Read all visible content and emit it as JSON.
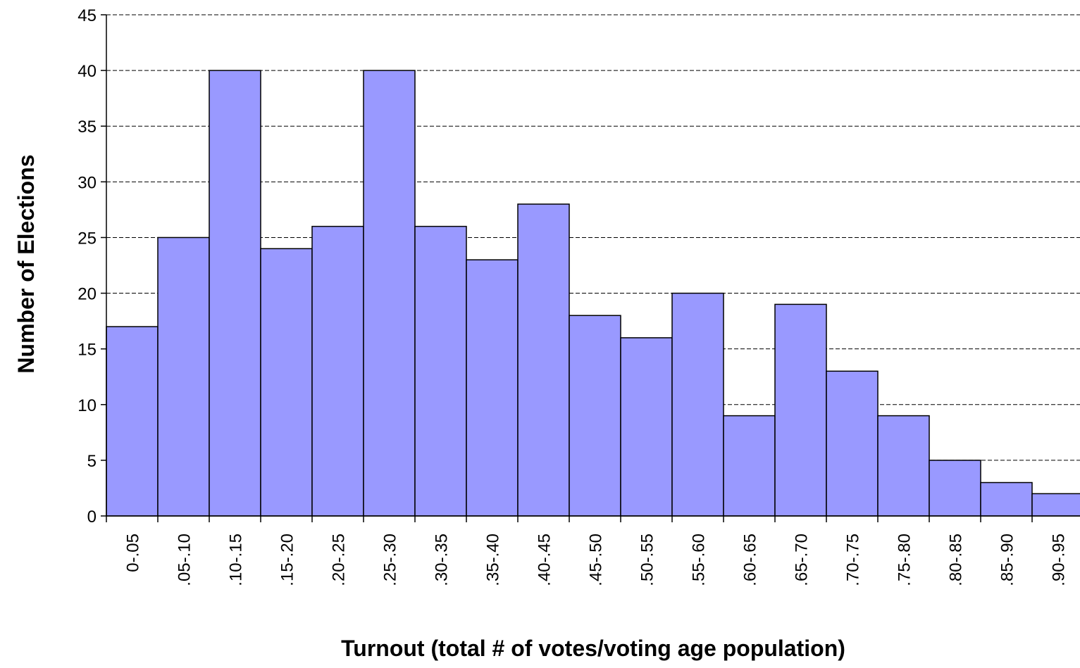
{
  "chart_data": {
    "type": "bar",
    "title": "",
    "xlabel": "Turnout (total # of votes/voting age population)",
    "ylabel": "Number of Elections",
    "categories": [
      "0-.05",
      ".05-.10",
      ".10-.15",
      ".15-.20",
      ".20-.25",
      ".25-.30",
      ".30-.35",
      ".35-.40",
      ".40-.45",
      ".45-.50",
      ".50-.55",
      ".55-.60",
      ".60-.65",
      ".65-.70",
      ".70-.75",
      ".75-.80",
      ".80-.85",
      ".85-.90",
      ".90-.95"
    ],
    "values": [
      17,
      25,
      40,
      24,
      26,
      40,
      26,
      23,
      28,
      18,
      16,
      20,
      9,
      19,
      13,
      9,
      5,
      3,
      2
    ],
    "ylim": [
      0,
      45
    ],
    "yticks": [
      0,
      5,
      10,
      15,
      20,
      25,
      30,
      35,
      40,
      45
    ],
    "grid": "horizontal dashed",
    "bar_gap": 0,
    "colors": {
      "bar_fill": "#9999ff",
      "bar_stroke": "#000000",
      "grid": "#000000",
      "axis": "#000000"
    }
  }
}
